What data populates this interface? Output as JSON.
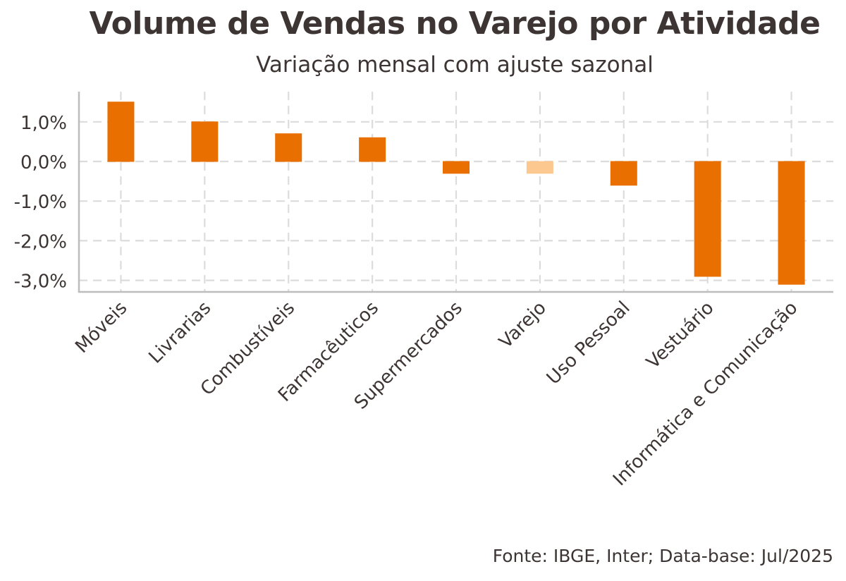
{
  "chart_data": {
    "type": "bar",
    "title": "Volume de Vendas no Varejo por Atividade",
    "subtitle": "Variação mensal com ajuste sazonal",
    "xlabel": "",
    "ylabel": "",
    "categories": [
      "Móveis",
      "Livrarias",
      "Combustíveis",
      "Farmacêuticos",
      "Supermercados",
      "Varejo",
      "Uso Pessoal",
      "Vestuário",
      "Informática e Comunicação"
    ],
    "values": [
      1.5,
      1.0,
      0.7,
      0.6,
      -0.3,
      -0.3,
      -0.6,
      -2.9,
      -3.1
    ],
    "ylim": [
      -3.3,
      1.75
    ],
    "y_ticks": [
      1.0,
      0.0,
      -1.0,
      -2.0,
      -3.0
    ],
    "y_tick_labels": [
      "1,0%",
      "0,0%",
      "-1,0%",
      "-2,0%",
      "-3,0%"
    ],
    "highlight_category": "Varejo",
    "grid": true,
    "legend": "none",
    "colors": {
      "bar": "#e86f00",
      "highlight": "#fcc890",
      "grid": "#dcdcdc",
      "axis": "#bdbdbd",
      "text": "#3d3533"
    },
    "caption": "Fonte: IBGE, Inter; Data-base: Jul/2025"
  }
}
